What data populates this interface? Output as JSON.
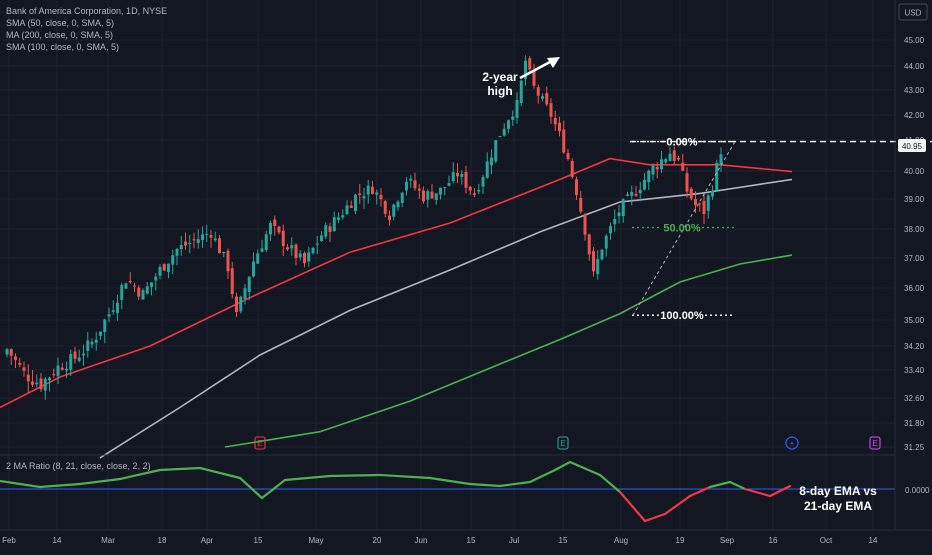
{
  "header": {
    "title": "Bank of America Corporation, 1D, NYSE",
    "currency": "USD"
  },
  "legend": [
    "SMA (50, close, 0, SMA, 5)",
    "MA (200, close, 0, SMA, 5)",
    "SMA (100, close, 0, SMA, 5)"
  ],
  "indicator": {
    "label": "2 MA Ratio (8, 21, close, close, 2, 2)",
    "value": "0.0000"
  },
  "annotations": {
    "high_line1": "2-year",
    "high_line2": "high",
    "ema_line1": "8-day EMA vs",
    "ema_line2": "21-day EMA"
  },
  "fib": {
    "top_label": "0.00%",
    "mid_label": "50.00%",
    "bottom_label": "100.00%"
  },
  "price_badge": "40.95",
  "events": [
    "E",
    "E",
    "+",
    "E"
  ],
  "colors": {
    "background": "#131722",
    "up": "#26a69a",
    "down": "#ef5350",
    "sma50": "#f23645",
    "sma100": "#b2b5be",
    "ma200": "#4caf50",
    "ratio_pos": "#4caf50",
    "ratio_neg": "#f23645",
    "zero_line": "#2962ff"
  },
  "chart_data": {
    "type": "candlestick",
    "title": "Bank of America Corporation, 1D, NYSE",
    "y_axis": {
      "ticks": [
        "45.00",
        "44.00",
        "43.00",
        "42.00",
        "41.00",
        "40.00",
        "39.00",
        "38.00",
        "37.00",
        "36.00",
        "35.00",
        "34.20",
        "33.40",
        "32.60",
        "31.80",
        "31.25"
      ],
      "unit": "USD"
    },
    "x_axis": {
      "ticks": [
        "Feb",
        "14",
        "Mar",
        "18",
        "Apr",
        "15",
        "May",
        "20",
        "Jun",
        "15",
        "Jul",
        "15",
        "Aug",
        "19",
        "Sep",
        "16",
        "Oct",
        "14"
      ]
    },
    "key_points": [
      {
        "label": "2-year high",
        "date": "Jul 15",
        "price": 44.45
      },
      {
        "label": "Fib 100.00%",
        "date": "Aug 05",
        "price": 35.15
      },
      {
        "label": "Fib 50.00%",
        "price": 38.05
      },
      {
        "label": "Fib 0.00%",
        "date": "Aug 30",
        "price": 40.95
      },
      {
        "label": "Last",
        "price": 40.95
      }
    ],
    "series": [
      {
        "name": "SMA (50, close, 0, SMA, 5)",
        "start": 32.3,
        "end": 39.98
      },
      {
        "name": "SMA (100, close, 0, SMA, 5)",
        "start": 31.0,
        "end": 39.7
      },
      {
        "name": "MA (200, close, 0, SMA, 5)",
        "start": 31.25,
        "end": 37.1
      }
    ],
    "indicator_series": {
      "name": "2 MA Ratio (8, 21, close, close, 2, 2)",
      "zero_line": 0.0
    }
  }
}
